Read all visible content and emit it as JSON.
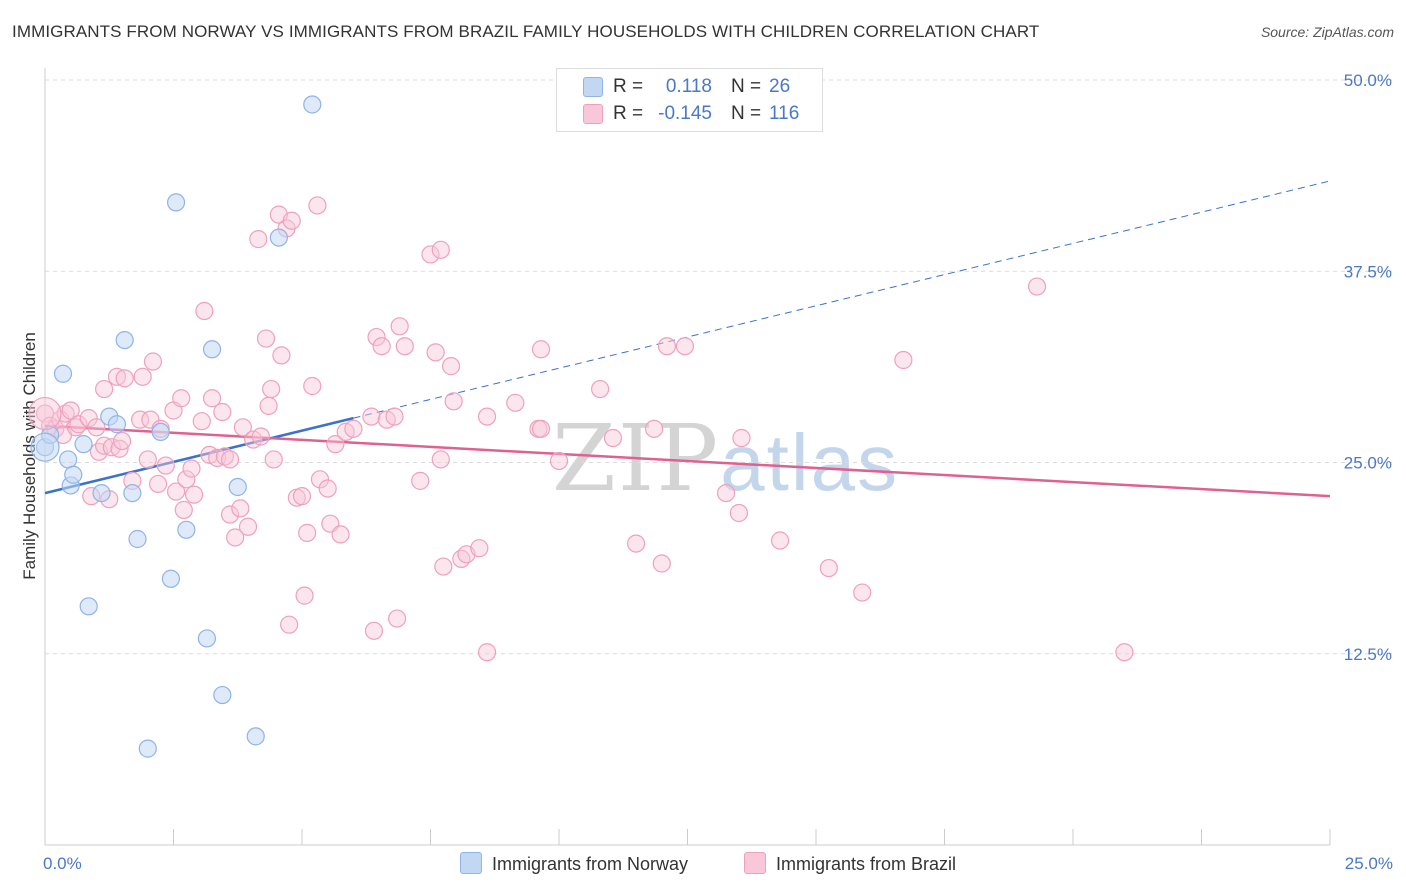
{
  "title": "IMMIGRANTS FROM NORWAY VS IMMIGRANTS FROM BRAZIL FAMILY HOUSEHOLDS WITH CHILDREN CORRELATION CHART",
  "source": "Source: ZipAtlas.com",
  "watermark": {
    "zip": "ZIP",
    "atlas": "atlas"
  },
  "colors": {
    "norway": "#8fb4e8",
    "norway_fill": "#c2d7f4",
    "norway_line": "#3a72cc",
    "brazil": "#f0a0bc",
    "brazil_fill": "#f8c8d8",
    "brazil_line": "#e06090",
    "tick": "#4a78c8"
  },
  "legend": {
    "rows": [
      {
        "r_label": "R =",
        "r_value": "0.118",
        "n_label": "N =",
        "n_value": "26"
      },
      {
        "r_label": "R =",
        "r_value": "-0.145",
        "n_label": "N =",
        "n_value": "116"
      }
    ]
  },
  "bottom_legend": {
    "norway": "Immigrants from Norway",
    "brazil": "Immigrants from Brazil"
  },
  "chart_data": {
    "type": "scatter",
    "title": "IMMIGRANTS FROM NORWAY VS IMMIGRANTS FROM BRAZIL FAMILY HOUSEHOLDS WITH CHILDREN CORRELATION CHART",
    "xlabel": "",
    "ylabel": "Family Households with Children",
    "xlim": [
      0,
      25
    ],
    "ylim": [
      0,
      50
    ],
    "x_tick_labels": [
      "0.0%",
      "25.0%"
    ],
    "y_ticks": [
      12.5,
      25.0,
      37.5,
      50.0
    ],
    "y_tick_labels": [
      "12.5%",
      "25.0%",
      "37.5%",
      "50.0%"
    ],
    "series": [
      {
        "name": "Immigrants from Norway",
        "points": [
          [
            0.0,
            26.0
          ],
          [
            0.1,
            26.8
          ],
          [
            0.35,
            30.8
          ],
          [
            0.45,
            25.2
          ],
          [
            0.5,
            23.5
          ],
          [
            0.55,
            24.2
          ],
          [
            0.75,
            26.2
          ],
          [
            0.85,
            15.6
          ],
          [
            1.1,
            23.0
          ],
          [
            1.25,
            28.0
          ],
          [
            1.4,
            27.5
          ],
          [
            1.55,
            33.0
          ],
          [
            1.7,
            23.0
          ],
          [
            1.8,
            20.0
          ],
          [
            2.0,
            6.3
          ],
          [
            2.25,
            27.0
          ],
          [
            2.45,
            17.4
          ],
          [
            2.55,
            42.0
          ],
          [
            2.75,
            20.6
          ],
          [
            3.15,
            13.5
          ],
          [
            3.25,
            32.4
          ],
          [
            3.45,
            9.8
          ],
          [
            3.75,
            23.4
          ],
          [
            4.1,
            7.1
          ],
          [
            4.55,
            39.7
          ],
          [
            5.2,
            48.4
          ]
        ],
        "trend": {
          "x": [
            0.0,
            6.0
          ],
          "y": [
            23.0,
            27.9
          ],
          "extended_to": [
            25.0,
            43.4
          ]
        }
      },
      {
        "name": "Immigrants from Brazil",
        "points": [
          [
            0.0,
            28.2
          ],
          [
            0.1,
            27.4
          ],
          [
            0.2,
            27.2
          ],
          [
            0.3,
            27.8
          ],
          [
            0.35,
            26.8
          ],
          [
            0.4,
            28.2
          ],
          [
            0.5,
            28.4
          ],
          [
            0.6,
            27.3
          ],
          [
            0.65,
            27.5
          ],
          [
            0.85,
            27.9
          ],
          [
            0.9,
            22.8
          ],
          [
            1.0,
            27.3
          ],
          [
            1.05,
            25.7
          ],
          [
            1.15,
            26.1
          ],
          [
            1.15,
            29.8
          ],
          [
            1.25,
            22.6
          ],
          [
            1.3,
            26.0
          ],
          [
            1.4,
            30.6
          ],
          [
            1.45,
            25.9
          ],
          [
            1.5,
            26.4
          ],
          [
            1.55,
            30.5
          ],
          [
            1.7,
            23.8
          ],
          [
            1.85,
            27.8
          ],
          [
            1.9,
            30.6
          ],
          [
            2.0,
            25.2
          ],
          [
            2.05,
            27.8
          ],
          [
            2.1,
            31.6
          ],
          [
            2.2,
            23.6
          ],
          [
            2.25,
            27.2
          ],
          [
            2.35,
            24.8
          ],
          [
            2.5,
            28.4
          ],
          [
            2.55,
            23.1
          ],
          [
            2.65,
            29.2
          ],
          [
            2.7,
            21.9
          ],
          [
            2.75,
            23.9
          ],
          [
            2.85,
            24.6
          ],
          [
            2.9,
            22.9
          ],
          [
            3.05,
            27.7
          ],
          [
            3.1,
            34.9
          ],
          [
            3.2,
            25.5
          ],
          [
            3.25,
            29.2
          ],
          [
            3.35,
            25.3
          ],
          [
            3.45,
            28.3
          ],
          [
            3.5,
            25.4
          ],
          [
            3.6,
            25.2
          ],
          [
            3.6,
            21.6
          ],
          [
            3.7,
            20.1
          ],
          [
            3.8,
            22.0
          ],
          [
            3.85,
            27.3
          ],
          [
            3.95,
            20.8
          ],
          [
            4.05,
            26.5
          ],
          [
            4.15,
            39.6
          ],
          [
            4.2,
            26.7
          ],
          [
            4.3,
            33.1
          ],
          [
            4.35,
            28.7
          ],
          [
            4.4,
            29.8
          ],
          [
            4.45,
            25.2
          ],
          [
            4.55,
            41.2
          ],
          [
            4.6,
            32.0
          ],
          [
            4.7,
            40.3
          ],
          [
            4.75,
            14.4
          ],
          [
            4.8,
            40.8
          ],
          [
            4.9,
            22.7
          ],
          [
            5.0,
            22.8
          ],
          [
            5.05,
            16.3
          ],
          [
            5.1,
            20.4
          ],
          [
            5.2,
            30.0
          ],
          [
            5.3,
            41.8
          ],
          [
            5.35,
            23.9
          ],
          [
            5.5,
            23.3
          ],
          [
            5.55,
            21.0
          ],
          [
            5.65,
            26.2
          ],
          [
            5.75,
            20.3
          ],
          [
            5.85,
            27.0
          ],
          [
            6.0,
            27.2
          ],
          [
            6.35,
            28.0
          ],
          [
            6.4,
            14.0
          ],
          [
            6.45,
            33.2
          ],
          [
            6.55,
            32.6
          ],
          [
            6.65,
            27.8
          ],
          [
            6.8,
            28.0
          ],
          [
            6.85,
            14.8
          ],
          [
            6.9,
            33.9
          ],
          [
            7.0,
            32.6
          ],
          [
            7.3,
            23.8
          ],
          [
            7.5,
            38.6
          ],
          [
            7.6,
            32.2
          ],
          [
            7.7,
            38.9
          ],
          [
            7.7,
            25.2
          ],
          [
            7.75,
            18.2
          ],
          [
            7.9,
            31.3
          ],
          [
            7.95,
            29.0
          ],
          [
            8.1,
            18.7
          ],
          [
            8.2,
            19.0
          ],
          [
            8.45,
            19.4
          ],
          [
            8.6,
            28.0
          ],
          [
            8.6,
            12.6
          ],
          [
            9.15,
            28.9
          ],
          [
            9.6,
            27.2
          ],
          [
            9.65,
            32.4
          ],
          [
            9.65,
            27.2
          ],
          [
            10.0,
            25.1
          ],
          [
            10.8,
            29.8
          ],
          [
            11.05,
            26.6
          ],
          [
            11.5,
            19.7
          ],
          [
            11.85,
            27.2
          ],
          [
            12.0,
            18.4
          ],
          [
            12.1,
            32.6
          ],
          [
            12.45,
            32.6
          ],
          [
            13.25,
            23.0
          ],
          [
            13.55,
            26.6
          ],
          [
            13.5,
            21.7
          ],
          [
            14.3,
            19.9
          ],
          [
            15.25,
            18.1
          ],
          [
            15.9,
            16.5
          ],
          [
            16.7,
            31.7
          ],
          [
            19.3,
            36.5
          ],
          [
            21.0,
            12.6
          ]
        ],
        "trend": {
          "x": [
            0.0,
            25.0
          ],
          "y": [
            27.4,
            22.8
          ]
        }
      }
    ]
  }
}
